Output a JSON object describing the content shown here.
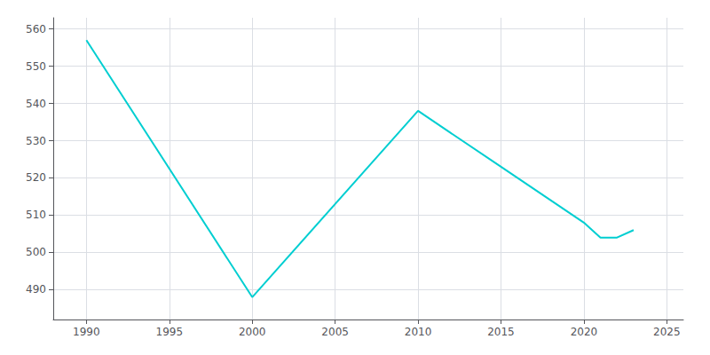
{
  "chart_data": {
    "type": "line",
    "x": [
      1990,
      2000,
      2010,
      2015,
      2020,
      2021,
      2022,
      2023
    ],
    "values": [
      557,
      488,
      538,
      523,
      508,
      504,
      504,
      506
    ],
    "color": "#00CED1",
    "xlim": [
      1988,
      2026
    ],
    "ylim": [
      482,
      563
    ],
    "xticks": [
      1990,
      1995,
      2000,
      2005,
      2010,
      2015,
      2020,
      2025
    ],
    "yticks": [
      490,
      500,
      510,
      520,
      530,
      540,
      550,
      560
    ],
    "grid": true
  }
}
